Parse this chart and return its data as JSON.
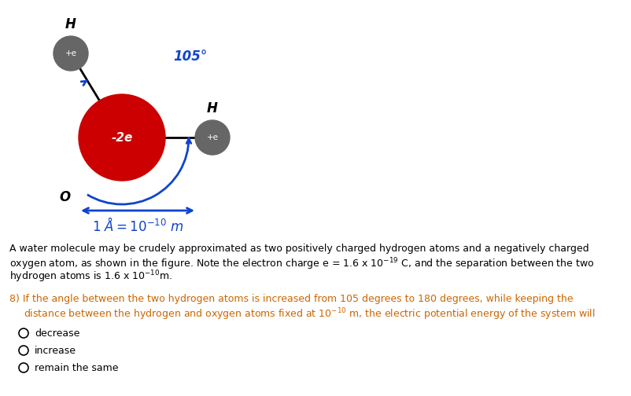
{
  "background_color": "#ffffff",
  "oxygen_color": "#cc0000",
  "oxygen_label": "-2e",
  "oxygen_label_color": "#ffffff",
  "h1_color": "#666666",
  "h1_label": "+e",
  "h1_letter": "H",
  "h2_color": "#666666",
  "h2_label": "+e",
  "h2_letter": "H",
  "angle_label": "105°",
  "angle_color": "#1144cc",
  "scale_color": "#1144cc",
  "O_label": "O",
  "line_color": "#000000",
  "arrow_color": "#1144cc",
  "text_color": "#000000",
  "text_fontsize": 9.0,
  "question_color": "#cc6600",
  "choice1": "decrease",
  "choice2": "increase",
  "choice3": "remain the same"
}
